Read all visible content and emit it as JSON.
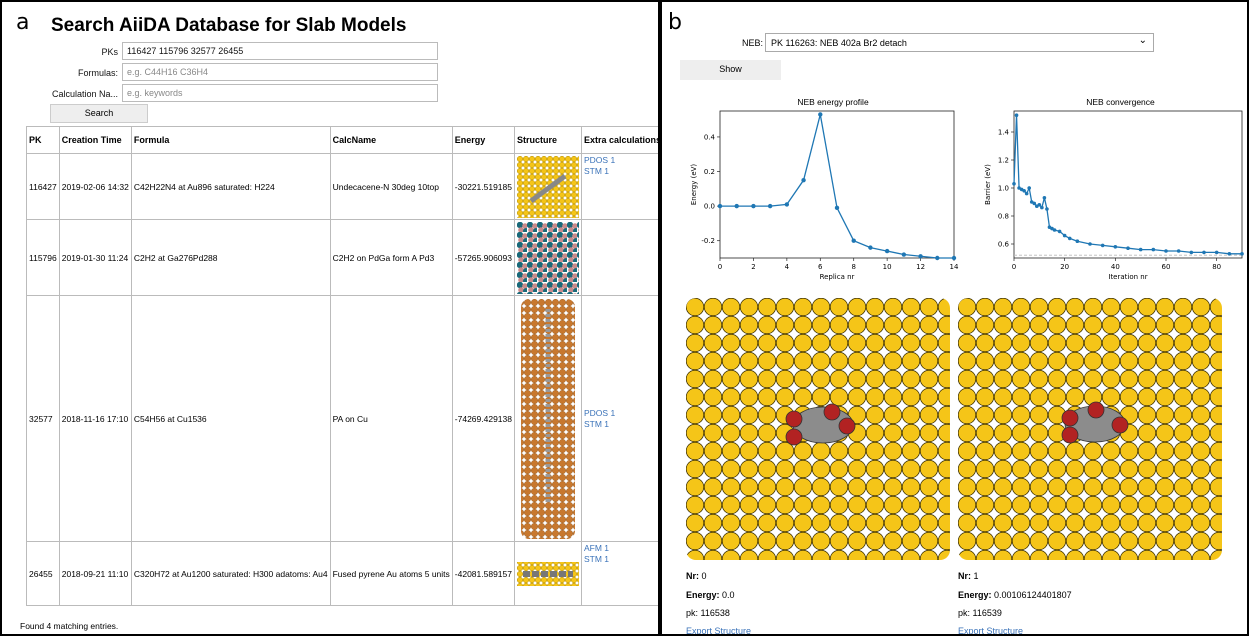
{
  "panel_a": {
    "letter": "a",
    "title": "Search AiiDA Database for Slab Models",
    "form": {
      "pks_label": "PKs",
      "pks_value": "116427 115796 32577 26455",
      "formulas_label": "Formulas:",
      "formulas_placeholder": "e.g. C44H16 C36H4",
      "calcname_label": "Calculation Na...",
      "calcname_placeholder": "e.g. keywords",
      "search_label": "Search"
    },
    "table": {
      "headers": [
        "PK",
        "Creation Time",
        "Formula",
        "CalcName",
        "Energy",
        "Structure",
        "Extra calculations"
      ],
      "rows": [
        {
          "pk": "116427",
          "time": "2019-02-06 14:32",
          "formula": "C42H22N4 at Au896 saturated: H224",
          "calc": "Undecacene-N 30deg 10top",
          "energy": "-30221.519185",
          "extras": [
            "PDOS 1",
            "STM 1"
          ]
        },
        {
          "pk": "115796",
          "time": "2019-01-30 11:24",
          "formula": "C2H2 at Ga276Pd288",
          "calc": "C2H2 on PdGa form A Pd3",
          "energy": "-57265.906093",
          "extras": []
        },
        {
          "pk": "32577",
          "time": "2018-11-16 17:10",
          "formula": "C54H56 at Cu1536",
          "calc": "PA on Cu",
          "energy": "-74269.429138",
          "extras": [
            "PDOS 1",
            "STM 1"
          ]
        },
        {
          "pk": "26455",
          "time": "2018-09-21 11:10",
          "formula": "C320H72 at Au1200 saturated: H300 adatoms: Au4",
          "calc": "Fused pyrene Au atoms 5 units",
          "energy": "-42081.589157",
          "extras": [
            "AFM 1",
            "STM 1"
          ]
        }
      ]
    },
    "found_text": "Found 4 matching entries."
  },
  "panel_b": {
    "letter": "b",
    "neb_label": "NEB:",
    "neb_value": "PK 116263: NEB 402a Br2 detach",
    "show_label": "Show",
    "energy_plot": {
      "title": "NEB energy profile",
      "xlabel": "Replica nr",
      "ylabel": "Energy (eV)",
      "xticks": [
        "0",
        "2",
        "4",
        "6",
        "8",
        "10",
        "12",
        "14"
      ],
      "yticks": [
        "-0.2",
        "0.0",
        "0.2",
        "0.4"
      ]
    },
    "conv_plot": {
      "title": "NEB convergence",
      "xlabel": "Iteration nr",
      "ylabel": "Barrier (eV)",
      "xticks": [
        "0",
        "20",
        "40",
        "60",
        "80"
      ],
      "yticks": [
        "0.6",
        "0.8",
        "1.0",
        "1.2",
        "1.4"
      ]
    },
    "replicas": [
      {
        "nr_label": "Nr:",
        "nr": "0",
        "energy_label": "Energy:",
        "energy": "0.0",
        "pk": "pk: 116538",
        "export": "Export Structure"
      },
      {
        "nr_label": "Nr:",
        "nr": "1",
        "energy_label": "Energy:",
        "energy": "0.00106124401807",
        "pk": "pk: 116539",
        "export": "Export Structure"
      }
    ]
  },
  "colors": {
    "link": "#3b73b9",
    "series": "#1f77b4",
    "gold": "#f5c518",
    "copper": "#c8782e",
    "bromine": "#b22222"
  },
  "chart_data": [
    {
      "type": "line",
      "title": "NEB energy profile",
      "xlabel": "Replica nr",
      "ylabel": "Energy (eV)",
      "xlim": [
        0,
        14
      ],
      "ylim": [
        -0.3,
        0.55
      ],
      "x": [
        0,
        1,
        2,
        3,
        4,
        5,
        6,
        7,
        8,
        9,
        10,
        11,
        12,
        13,
        14
      ],
      "y": [
        0.0,
        0.0,
        0.0,
        0.0,
        0.01,
        0.15,
        0.53,
        -0.01,
        -0.2,
        -0.24,
        -0.26,
        -0.28,
        -0.29,
        -0.3,
        -0.3
      ]
    },
    {
      "type": "line",
      "title": "NEB convergence",
      "xlabel": "Iteration nr",
      "ylabel": "Barrier (eV)",
      "xlim": [
        0,
        90
      ],
      "ylim": [
        0.5,
        1.55
      ],
      "x": [
        0,
        1,
        2,
        3,
        4,
        5,
        6,
        7,
        8,
        9,
        10,
        11,
        12,
        13,
        14,
        15,
        16,
        18,
        20,
        22,
        25,
        30,
        35,
        40,
        45,
        50,
        55,
        60,
        65,
        70,
        75,
        80,
        85,
        90
      ],
      "y": [
        1.03,
        1.52,
        1.0,
        0.99,
        0.98,
        0.96,
        1.0,
        0.9,
        0.89,
        0.87,
        0.88,
        0.86,
        0.93,
        0.85,
        0.72,
        0.71,
        0.7,
        0.69,
        0.66,
        0.64,
        0.62,
        0.6,
        0.59,
        0.58,
        0.57,
        0.56,
        0.56,
        0.55,
        0.55,
        0.54,
        0.54,
        0.54,
        0.53,
        0.53
      ]
    }
  ]
}
